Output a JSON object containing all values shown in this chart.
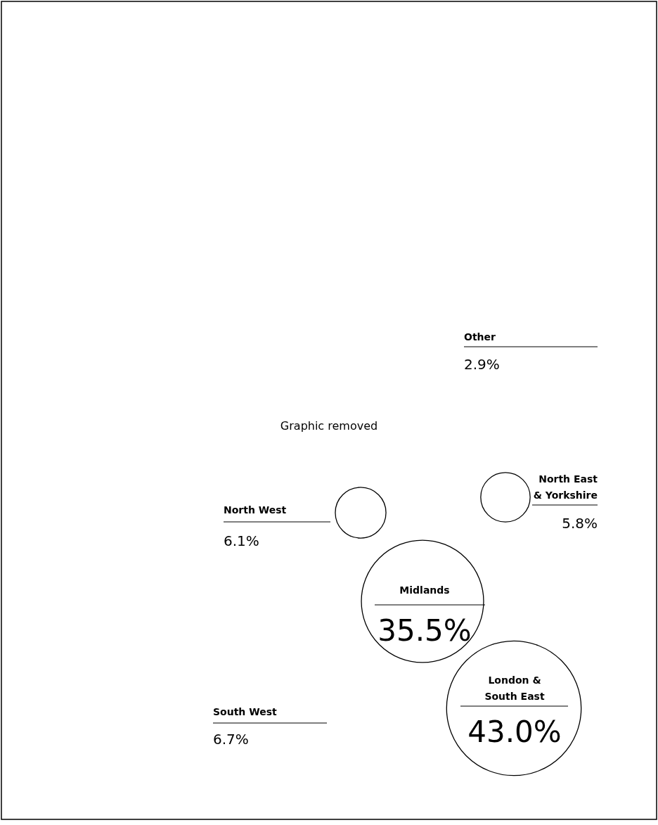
{
  "chart_data": {
    "type": "other",
    "categories": [
      "Other",
      "North East\n& Yorkshire",
      "North West",
      "Midlands",
      "London &\nSouth East",
      "South West"
    ],
    "values": [
      2.9,
      5.8,
      6.1,
      35.5,
      43.0,
      6.7
    ],
    "value_labels": [
      "2.9%",
      "5.8%",
      "6.1%",
      "35.5%",
      "43.0%",
      "6.7%"
    ],
    "colors": [
      null,
      "#ffffff",
      "#ffffff",
      "#ffffff",
      "#ffffff",
      null
    ],
    "annotations": [
      "Graphic removed"
    ]
  }
}
